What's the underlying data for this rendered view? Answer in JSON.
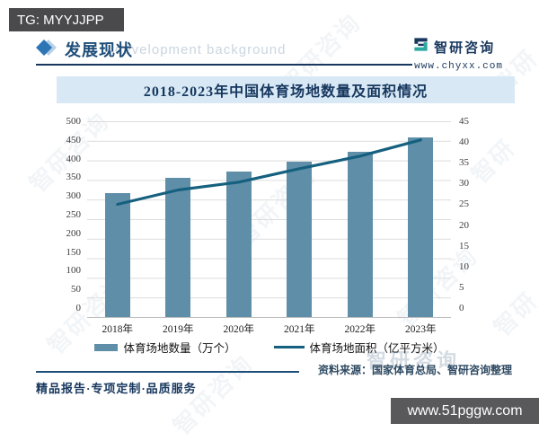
{
  "overlays": {
    "tg_badge": "TG: MYYJJPP",
    "url_badge": "www.51pggw.com"
  },
  "header": {
    "section_title": "发展现状",
    "brand_name": "智研咨询",
    "brand_site": "www.chyxx.com",
    "background_watermark_text": "development background"
  },
  "chart_data": {
    "type": "bar+line",
    "title": "2018-2023年中国体育场地数量及面积情况",
    "categories": [
      "2018年",
      "2019年",
      "2020年",
      "2021年",
      "2022年",
      "2023年"
    ],
    "series": [
      {
        "name": "体育场地数量（万个）",
        "type": "bar",
        "axis": "left",
        "color": "#5f8fa8",
        "values": [
          316.2,
          354.4,
          371.3,
          397.1,
          422.7,
          459.3
        ]
      },
      {
        "name": "体育场地面积（亿平方米）",
        "type": "line",
        "axis": "right",
        "color": "#16607f",
        "values": [
          25.9,
          29.2,
          31.0,
          34.1,
          37.0,
          40.7
        ]
      }
    ],
    "left_axis": {
      "min": 0,
      "max": 500,
      "ticks": [
        500,
        450,
        400,
        350,
        300,
        250,
        200,
        150,
        100,
        50,
        0
      ]
    },
    "right_axis": {
      "min": 0,
      "max": 45,
      "ticks": [
        45,
        40,
        35,
        30,
        25,
        20,
        15,
        10,
        5,
        0
      ]
    },
    "grid": true,
    "legend_position": "bottom"
  },
  "footer": {
    "tagline": "精品报告·专项定制·品质服务",
    "source": "资料来源：国家体育总局、智研咨询整理",
    "watermark_brand": "智研咨询"
  },
  "colors": {
    "bar": "#5f8fa8",
    "line": "#16607f",
    "title_band_bg": "#d8e9f5",
    "navy": "#17375e"
  }
}
